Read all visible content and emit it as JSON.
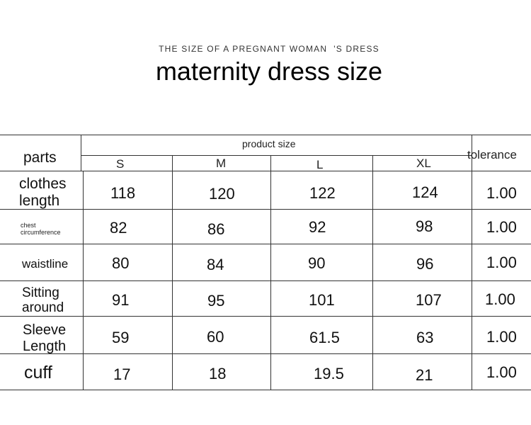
{
  "header": {
    "subtitle": "THE SIZE OF A PREGNANT WOMAN  'S DRESS",
    "title": "maternity dress size"
  },
  "table": {
    "parts_header": "parts",
    "product_size_header": "product size",
    "tolerance_header": "tolerance",
    "sizes": [
      "S",
      "M",
      "L",
      "XL"
    ],
    "rows": [
      {
        "label": "clothes length",
        "values": [
          "118",
          "120",
          "122",
          "124"
        ],
        "tolerance": "1.00"
      },
      {
        "label": "chest circumference",
        "values": [
          "82",
          "86",
          "92",
          "98"
        ],
        "tolerance": "1.00"
      },
      {
        "label": "waistline",
        "values": [
          "80",
          "84",
          "90",
          "96"
        ],
        "tolerance": "1.00"
      },
      {
        "label": "Sitting around",
        "values": [
          "91",
          "95",
          "101",
          "107"
        ],
        "tolerance": "1.00"
      },
      {
        "label": "Sleeve Length",
        "values": [
          "59",
          "60",
          "61.5",
          "63"
        ],
        "tolerance": "1.00"
      },
      {
        "label": "cuff",
        "values": [
          "17",
          "18",
          "19.5",
          "21"
        ],
        "tolerance": "1.00"
      }
    ]
  }
}
